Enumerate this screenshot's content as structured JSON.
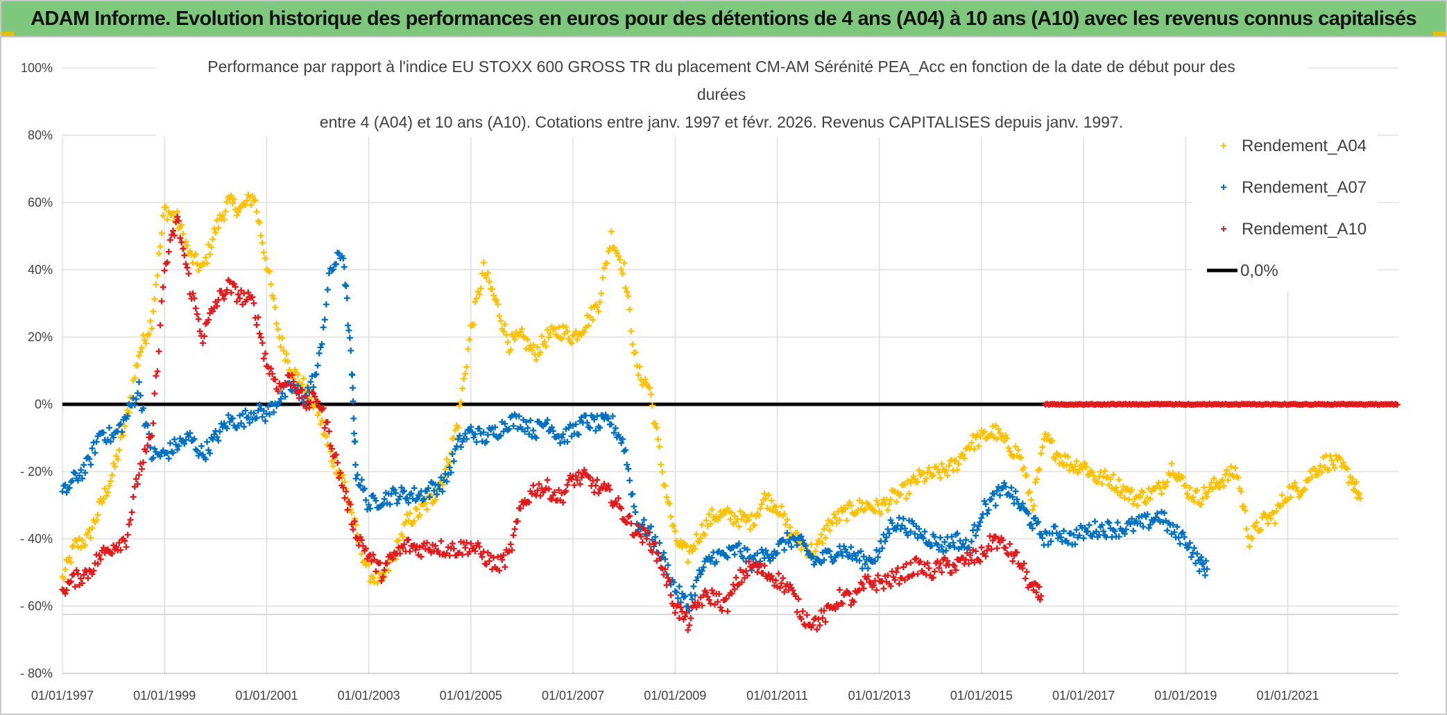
{
  "header": {
    "title": "ADAM Informe. Evolution historique des performances en euros pour des détentions de 4 ans (A04) à 10 ans (A10) avec les revenus connus capitalisés"
  },
  "chart_data": {
    "type": "scatter",
    "title_lines": [
      "Performance par rapport à l'indice EU STOXX 600 GROSS TR  du placement CM-AM Sérénité PEA_Acc en fonction de la date de début pour des",
      "durées",
      "entre 4 (A04) et 10 ans (A10). Cotations entre janv. 1997 et févr. 2026. Revenus CAPITALISES depuis janv. 1997."
    ],
    "y_ticks": [
      "100%",
      "80%",
      "60%",
      "40%",
      "20%",
      "0%",
      "- 20%",
      "- 40%",
      "- 60%",
      "- 80%"
    ],
    "x_ticks": [
      "01/01/1997",
      "01/01/1999",
      "01/01/2001",
      "01/01/2003",
      "01/01/2005",
      "01/01/2007",
      "01/01/2009",
      "01/01/2011",
      "01/01/2013",
      "01/01/2015",
      "01/01/2017",
      "01/01/2019",
      "01/01/2021"
    ],
    "ylim": [
      -0.8,
      1.0
    ],
    "xlim": [
      "1997-01-01",
      "2023-03-01"
    ],
    "grid": true,
    "legend_position": "top-right",
    "colors": {
      "A04": "#ffc000",
      "A07": "#0070c0",
      "A10": "#e31a1c",
      "zero": "#000000"
    },
    "series": [
      {
        "name": "Rendement_A04",
        "points": [
          [
            "1997-01",
            -0.52
          ],
          [
            "1997-04",
            -0.42
          ],
          [
            "1997-07",
            -0.4
          ],
          [
            "1997-10",
            -0.3
          ],
          [
            "1998-01",
            -0.2
          ],
          [
            "1998-04",
            -0.05
          ],
          [
            "1998-07",
            0.15
          ],
          [
            "1998-10",
            0.25
          ],
          [
            "1999-01",
            0.58
          ],
          [
            "1999-04",
            0.55
          ],
          [
            "1999-07",
            0.44
          ],
          [
            "1999-10",
            0.4
          ],
          [
            "2000-01",
            0.52
          ],
          [
            "2000-04",
            0.6
          ],
          [
            "2000-07",
            0.58
          ],
          [
            "2000-10",
            0.62
          ],
          [
            "2001-01",
            0.42
          ],
          [
            "2001-04",
            0.2
          ],
          [
            "2001-07",
            0.1
          ],
          [
            "2001-10",
            0.05
          ],
          [
            "2002-01",
            -0.02
          ],
          [
            "2002-04",
            -0.15
          ],
          [
            "2002-07",
            -0.22
          ],
          [
            "2002-10",
            -0.38
          ],
          [
            "2003-01",
            -0.5
          ],
          [
            "2003-04",
            -0.53
          ],
          [
            "2003-07",
            -0.45
          ],
          [
            "2003-10",
            -0.35
          ],
          [
            "2004-01",
            -0.32
          ],
          [
            "2004-04",
            -0.28
          ],
          [
            "2004-07",
            -0.2
          ],
          [
            "2004-10",
            -0.05
          ],
          [
            "2005-01",
            0.22
          ],
          [
            "2005-04",
            0.4
          ],
          [
            "2005-07",
            0.3
          ],
          [
            "2005-10",
            0.18
          ],
          [
            "2006-01",
            0.2
          ],
          [
            "2006-04",
            0.15
          ],
          [
            "2006-07",
            0.2
          ],
          [
            "2006-10",
            0.22
          ],
          [
            "2007-01",
            0.2
          ],
          [
            "2007-04",
            0.24
          ],
          [
            "2007-07",
            0.3
          ],
          [
            "2007-10",
            0.5
          ],
          [
            "2008-01",
            0.4
          ],
          [
            "2008-04",
            0.1
          ],
          [
            "2008-07",
            0.05
          ],
          [
            "2008-10",
            -0.2
          ],
          [
            "2009-01",
            -0.4
          ],
          [
            "2009-04",
            -0.45
          ],
          [
            "2009-07",
            -0.38
          ],
          [
            "2009-10",
            -0.33
          ],
          [
            "2010-01",
            -0.33
          ],
          [
            "2010-04",
            -0.34
          ],
          [
            "2010-07",
            -0.35
          ],
          [
            "2010-10",
            -0.28
          ],
          [
            "2011-01",
            -0.3
          ],
          [
            "2011-04",
            -0.38
          ],
          [
            "2011-07",
            -0.42
          ],
          [
            "2011-10",
            -0.44
          ],
          [
            "2012-01",
            -0.36
          ],
          [
            "2012-04",
            -0.33
          ],
          [
            "2012-07",
            -0.31
          ],
          [
            "2012-10",
            -0.3
          ],
          [
            "2013-01",
            -0.31
          ],
          [
            "2013-04",
            -0.28
          ],
          [
            "2013-07",
            -0.26
          ],
          [
            "2013-10",
            -0.22
          ],
          [
            "2014-01",
            -0.21
          ],
          [
            "2014-04",
            -0.2
          ],
          [
            "2014-07",
            -0.18
          ],
          [
            "2014-10",
            -0.12
          ],
          [
            "2015-01",
            -0.1
          ],
          [
            "2015-04",
            -0.08
          ],
          [
            "2015-07",
            -0.12
          ],
          [
            "2015-10",
            -0.15
          ],
          [
            "2016-01",
            -0.3
          ],
          [
            "2016-04",
            -0.1
          ],
          [
            "2016-07",
            -0.15
          ],
          [
            "2016-10",
            -0.18
          ],
          [
            "2017-01",
            -0.18
          ],
          [
            "2017-04",
            -0.22
          ],
          [
            "2017-07",
            -0.22
          ],
          [
            "2017-10",
            -0.25
          ],
          [
            "2018-01",
            -0.28
          ],
          [
            "2018-04",
            -0.27
          ],
          [
            "2018-07",
            -0.25
          ],
          [
            "2018-10",
            -0.18
          ],
          [
            "2019-01",
            -0.25
          ],
          [
            "2019-04",
            -0.28
          ],
          [
            "2019-07",
            -0.25
          ],
          [
            "2019-10",
            -0.22
          ],
          [
            "2020-01",
            -0.2
          ],
          [
            "2020-04",
            -0.4
          ],
          [
            "2020-07",
            -0.35
          ],
          [
            "2020-10",
            -0.33
          ],
          [
            "2021-01",
            -0.26
          ],
          [
            "2021-04",
            -0.25
          ],
          [
            "2021-07",
            -0.2
          ],
          [
            "2021-10",
            -0.17
          ],
          [
            "2022-01",
            -0.18
          ],
          [
            "2022-04",
            -0.22
          ],
          [
            "2022-06",
            -0.28
          ]
        ]
      },
      {
        "name": "Rendement_A07",
        "points": [
          [
            "1997-01",
            -0.27
          ],
          [
            "1997-04",
            -0.22
          ],
          [
            "1997-07",
            -0.18
          ],
          [
            "1997-10",
            -0.08
          ],
          [
            "1998-01",
            -0.1
          ],
          [
            "1998-04",
            -0.04
          ],
          [
            "1998-07",
            0.05
          ],
          [
            "1998-10",
            -0.15
          ],
          [
            "1999-01",
            -0.15
          ],
          [
            "1999-04",
            -0.12
          ],
          [
            "1999-07",
            -0.1
          ],
          [
            "1999-10",
            -0.15
          ],
          [
            "2000-01",
            -0.1
          ],
          [
            "2000-04",
            -0.05
          ],
          [
            "2000-07",
            -0.05
          ],
          [
            "2000-10",
            -0.02
          ],
          [
            "2001-01",
            -0.03
          ],
          [
            "2001-04",
            0.02
          ],
          [
            "2001-07",
            0.05
          ],
          [
            "2001-10",
            0.02
          ],
          [
            "2002-01",
            0.1
          ],
          [
            "2002-04",
            0.4
          ],
          [
            "2002-07",
            0.45
          ],
          [
            "2002-09",
            0.1
          ],
          [
            "2002-10",
            -0.2
          ],
          [
            "2003-01",
            -0.3
          ],
          [
            "2003-04",
            -0.28
          ],
          [
            "2003-07",
            -0.27
          ],
          [
            "2003-10",
            -0.27
          ],
          [
            "2004-01",
            -0.27
          ],
          [
            "2004-04",
            -0.25
          ],
          [
            "2004-07",
            -0.23
          ],
          [
            "2004-10",
            -0.12
          ],
          [
            "2005-01",
            -0.08
          ],
          [
            "2005-04",
            -0.1
          ],
          [
            "2005-07",
            -0.08
          ],
          [
            "2005-10",
            -0.05
          ],
          [
            "2006-01",
            -0.05
          ],
          [
            "2006-04",
            -0.08
          ],
          [
            "2006-07",
            -0.05
          ],
          [
            "2006-10",
            -0.1
          ],
          [
            "2007-01",
            -0.08
          ],
          [
            "2007-04",
            -0.05
          ],
          [
            "2007-07",
            -0.06
          ],
          [
            "2007-10",
            -0.05
          ],
          [
            "2008-01",
            -0.12
          ],
          [
            "2008-04",
            -0.35
          ],
          [
            "2008-07",
            -0.38
          ],
          [
            "2008-10",
            -0.45
          ],
          [
            "2009-01",
            -0.55
          ],
          [
            "2009-04",
            -0.6
          ],
          [
            "2009-07",
            -0.5
          ],
          [
            "2009-10",
            -0.45
          ],
          [
            "2010-01",
            -0.45
          ],
          [
            "2010-04",
            -0.43
          ],
          [
            "2010-07",
            -0.47
          ],
          [
            "2010-10",
            -0.45
          ],
          [
            "2011-01",
            -0.43
          ],
          [
            "2011-04",
            -0.4
          ],
          [
            "2011-07",
            -0.42
          ],
          [
            "2011-10",
            -0.47
          ],
          [
            "2012-01",
            -0.45
          ],
          [
            "2012-04",
            -0.43
          ],
          [
            "2012-07",
            -0.45
          ],
          [
            "2012-10",
            -0.47
          ],
          [
            "2013-01",
            -0.44
          ],
          [
            "2013-04",
            -0.35
          ],
          [
            "2013-07",
            -0.36
          ],
          [
            "2013-10",
            -0.38
          ],
          [
            "2014-01",
            -0.4
          ],
          [
            "2014-04",
            -0.42
          ],
          [
            "2014-07",
            -0.4
          ],
          [
            "2014-10",
            -0.43
          ],
          [
            "2015-01",
            -0.32
          ],
          [
            "2015-04",
            -0.28
          ],
          [
            "2015-07",
            -0.25
          ],
          [
            "2015-10",
            -0.3
          ],
          [
            "2016-01",
            -0.35
          ],
          [
            "2016-04",
            -0.4
          ],
          [
            "2016-07",
            -0.38
          ],
          [
            "2016-10",
            -0.4
          ],
          [
            "2017-01",
            -0.38
          ],
          [
            "2017-04",
            -0.37
          ],
          [
            "2017-07",
            -0.37
          ],
          [
            "2017-10",
            -0.37
          ],
          [
            "2018-01",
            -0.36
          ],
          [
            "2018-04",
            -0.35
          ],
          [
            "2018-07",
            -0.33
          ],
          [
            "2018-10",
            -0.38
          ],
          [
            "2019-01",
            -0.4
          ],
          [
            "2019-04",
            -0.47
          ],
          [
            "2019-06",
            -0.49
          ]
        ]
      },
      {
        "name": "Rendement_A10",
        "points": [
          [
            "1997-01",
            -0.55
          ],
          [
            "1997-04",
            -0.52
          ],
          [
            "1997-07",
            -0.5
          ],
          [
            "1997-10",
            -0.45
          ],
          [
            "1998-01",
            -0.42
          ],
          [
            "1998-04",
            -0.4
          ],
          [
            "1998-07",
            -0.2
          ],
          [
            "1998-10",
            -0.1
          ],
          [
            "1999-01",
            0.4
          ],
          [
            "1999-04",
            0.55
          ],
          [
            "1999-07",
            0.35
          ],
          [
            "1999-10",
            0.2
          ],
          [
            "2000-01",
            0.3
          ],
          [
            "2000-04",
            0.35
          ],
          [
            "2000-07",
            0.32
          ],
          [
            "2000-10",
            0.3
          ],
          [
            "2001-01",
            0.12
          ],
          [
            "2001-04",
            0.05
          ],
          [
            "2001-07",
            0.08
          ],
          [
            "2001-10",
            0.0
          ],
          [
            "2002-01",
            0.02
          ],
          [
            "2002-04",
            -0.1
          ],
          [
            "2002-07",
            -0.25
          ],
          [
            "2002-10",
            -0.38
          ],
          [
            "2003-01",
            -0.45
          ],
          [
            "2003-04",
            -0.5
          ],
          [
            "2003-07",
            -0.45
          ],
          [
            "2003-10",
            -0.42
          ],
          [
            "2004-01",
            -0.43
          ],
          [
            "2004-04",
            -0.42
          ],
          [
            "2004-07",
            -0.43
          ],
          [
            "2004-10",
            -0.43
          ],
          [
            "2005-01",
            -0.42
          ],
          [
            "2005-04",
            -0.45
          ],
          [
            "2005-07",
            -0.48
          ],
          [
            "2005-10",
            -0.45
          ],
          [
            "2006-01",
            -0.3
          ],
          [
            "2006-04",
            -0.25
          ],
          [
            "2006-07",
            -0.25
          ],
          [
            "2006-10",
            -0.28
          ],
          [
            "2007-01",
            -0.22
          ],
          [
            "2007-04",
            -0.22
          ],
          [
            "2007-07",
            -0.25
          ],
          [
            "2007-10",
            -0.27
          ],
          [
            "2008-01",
            -0.33
          ],
          [
            "2008-04",
            -0.38
          ],
          [
            "2008-07",
            -0.4
          ],
          [
            "2008-10",
            -0.48
          ],
          [
            "2009-01",
            -0.6
          ],
          [
            "2009-04",
            -0.65
          ],
          [
            "2009-07",
            -0.58
          ],
          [
            "2009-10",
            -0.57
          ],
          [
            "2010-01",
            -0.6
          ],
          [
            "2010-04",
            -0.52
          ],
          [
            "2010-07",
            -0.48
          ],
          [
            "2010-10",
            -0.5
          ],
          [
            "2011-01",
            -0.52
          ],
          [
            "2011-04",
            -0.55
          ],
          [
            "2011-07",
            -0.63
          ],
          [
            "2011-10",
            -0.65
          ],
          [
            "2012-01",
            -0.62
          ],
          [
            "2012-04",
            -0.57
          ],
          [
            "2012-07",
            -0.58
          ],
          [
            "2012-10",
            -0.53
          ],
          [
            "2013-01",
            -0.53
          ],
          [
            "2013-04",
            -0.52
          ],
          [
            "2013-07",
            -0.5
          ],
          [
            "2013-10",
            -0.48
          ],
          [
            "2014-01",
            -0.5
          ],
          [
            "2014-04",
            -0.48
          ],
          [
            "2014-07",
            -0.48
          ],
          [
            "2014-10",
            -0.46
          ],
          [
            "2015-01",
            -0.45
          ],
          [
            "2015-04",
            -0.4
          ],
          [
            "2015-07",
            -0.43
          ],
          [
            "2015-10",
            -0.47
          ],
          [
            "2016-01",
            -0.55
          ],
          [
            "2016-03",
            -0.57
          ]
        ]
      }
    ],
    "a10_zero_range": [
      "2016-04",
      "2023-03"
    ],
    "reference_line": {
      "name": "0,0%",
      "value": 0
    }
  }
}
